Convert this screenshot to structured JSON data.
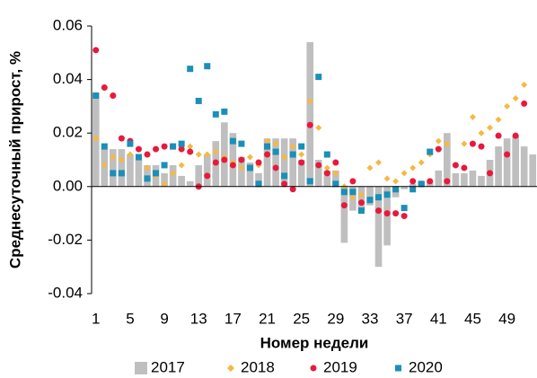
{
  "chart_data": {
    "type": "bar_scatter",
    "x_label": "Номер недели",
    "y_label": "Среднесуточный прирост, %",
    "categories": [
      1,
      2,
      3,
      4,
      5,
      6,
      7,
      8,
      9,
      10,
      11,
      12,
      13,
      14,
      15,
      16,
      17,
      18,
      19,
      20,
      21,
      22,
      23,
      24,
      25,
      26,
      27,
      28,
      29,
      30,
      31,
      32,
      33,
      34,
      35,
      36,
      37,
      38,
      39,
      40,
      41,
      42,
      43,
      44,
      45,
      46,
      47,
      48,
      49,
      50,
      51,
      52
    ],
    "xticks": [
      1,
      5,
      9,
      13,
      17,
      21,
      25,
      29,
      33,
      37,
      41,
      45,
      49
    ],
    "ylim": [
      -0.04,
      0.06
    ],
    "yticks": [
      {
        "value": -0.04,
        "label": "-0.04"
      },
      {
        "value": -0.02,
        "label": "-0.02"
      },
      {
        "value": 0,
        "label": "0.00"
      },
      {
        "value": 0.02,
        "label": "0.02"
      },
      {
        "value": 0.04,
        "label": "0.04"
      },
      {
        "value": 0.06,
        "label": "0.06"
      }
    ],
    "legend": "bottom",
    "series": [
      {
        "name": "2017",
        "kind": "bar",
        "color": "#bfbfbf",
        "values": [
          0.035,
          0.014,
          0.014,
          0.014,
          0.012,
          0.01,
          0.008,
          0.008,
          0.005,
          0.008,
          0.004,
          0.002,
          0.008,
          0.012,
          0.017,
          0.024,
          0.02,
          0.011,
          0.009,
          0.005,
          0.018,
          0.018,
          0.018,
          0.018,
          0.01,
          0.054,
          0.01,
          0.006,
          0.006,
          -0.021,
          -0.009,
          -0.009,
          -0.007,
          -0.03,
          -0.022,
          -0.004,
          -0.001,
          0.001,
          0.002,
          0.002,
          0.006,
          0.02,
          0.005,
          0.005,
          0.006,
          0.004,
          0.01,
          0.015,
          0.018,
          0.019,
          0.015,
          0.012
        ]
      },
      {
        "name": "2018",
        "kind": "diamond",
        "color": "#f5b942",
        "values": [
          0.018,
          0.008,
          0.011,
          0.01,
          0.012,
          0.011,
          0.007,
          0.004,
          0.001,
          0.005,
          0.008,
          0.015,
          0.012,
          0.012,
          0.013,
          0.011,
          0.009,
          0.007,
          0.011,
          0.008,
          0.017,
          0.016,
          0.011,
          0.015,
          0.012,
          0.032,
          0.022,
          0.007,
          0.005,
          0.0,
          -0.004,
          -0.003,
          0.007,
          0.009,
          0.003,
          0.002,
          0.005,
          0.007,
          0.009,
          0.012,
          0.017,
          0.016,
          0.008,
          0.016,
          0.026,
          0.02,
          0.022,
          0.025,
          0.03,
          0.033,
          0.038,
          null
        ]
      },
      {
        "name": "2019",
        "kind": "circle",
        "color": "#e8193c",
        "values": [
          0.051,
          0.037,
          0.034,
          0.018,
          0.017,
          0.014,
          0.012,
          0.014,
          0.015,
          0.015,
          0.014,
          0.013,
          0.0,
          0.004,
          0.009,
          0.01,
          0.008,
          0.01,
          0.007,
          0.009,
          0.012,
          0.007,
          0.001,
          -0.001,
          0.009,
          0.023,
          0.008,
          0.005,
          0.009,
          -0.007,
          0.002,
          -0.006,
          -0.005,
          -0.009,
          -0.01,
          -0.01,
          -0.011,
          0.002,
          0.001,
          0.002,
          0.014,
          0.002,
          0.008,
          0.007,
          0.016,
          0.015,
          0.005,
          0.019,
          0.012,
          0.019,
          0.031,
          null
        ]
      },
      {
        "name": "2020",
        "kind": "square",
        "color": "#1a8fb8",
        "values": [
          0.034,
          0.015,
          0.005,
          0.005,
          0.016,
          0.011,
          0.003,
          0.005,
          0.008,
          0.015,
          0.016,
          0.044,
          0.032,
          0.045,
          0.027,
          0.028,
          0.017,
          0.016,
          0.007,
          0.001,
          0.015,
          0.013,
          0.004,
          0.012,
          0.015,
          0.002,
          0.041,
          0.012,
          0.001,
          -0.002,
          -0.002,
          -0.009,
          -0.005,
          -0.004,
          -0.003,
          -0.001,
          -0.008,
          -0.001,
          0.001,
          0.013,
          null,
          null,
          null,
          null,
          null,
          null,
          null,
          null,
          null,
          null,
          null,
          null
        ]
      }
    ]
  }
}
